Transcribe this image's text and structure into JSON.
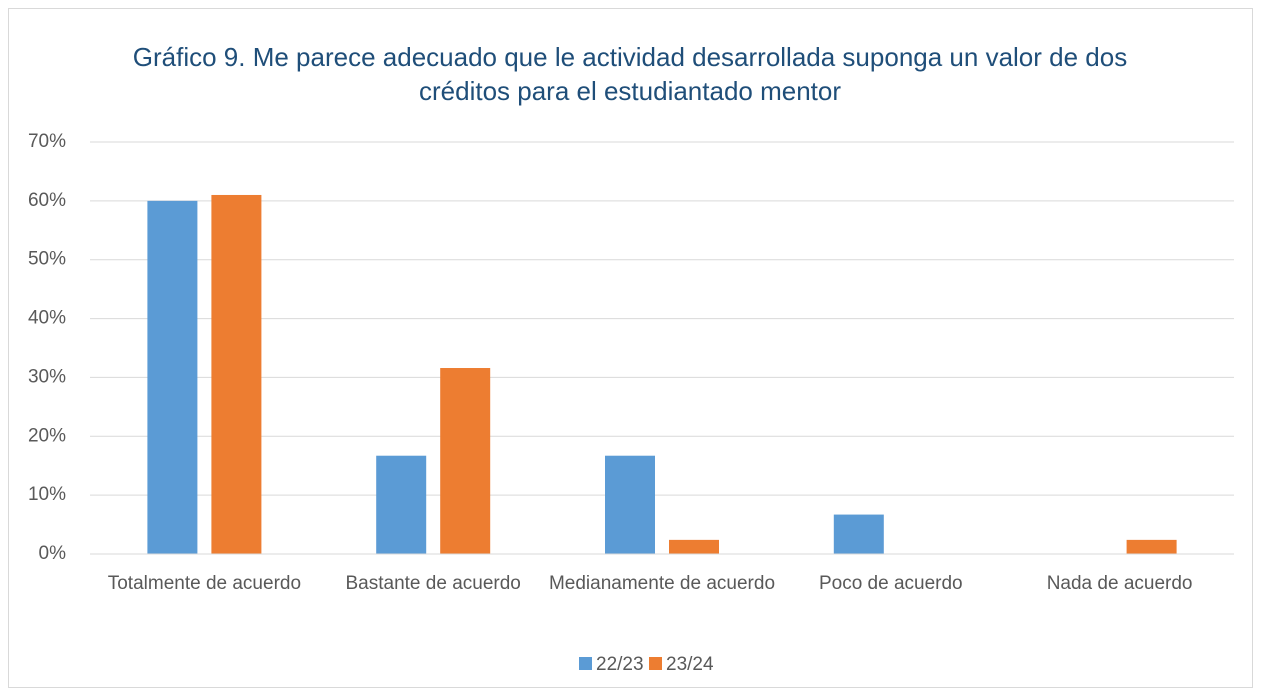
{
  "chart_data": {
    "type": "bar",
    "title": "Gráfico 9. Me parece adecuado que le actividad desarrollada suponga un valor de dos créditos para el estudiantado mentor",
    "categories": [
      "Totalmente de acuerdo",
      "Bastante de acuerdo",
      "Medianamente de acuerdo",
      "Poco de acuerdo",
      "Nada de acuerdo"
    ],
    "series": [
      {
        "name": "22/23",
        "color": "#5b9bd5",
        "values": [
          60,
          16.7,
          16.7,
          6.7,
          0
        ]
      },
      {
        "name": "23/24",
        "color": "#ed7d31",
        "values": [
          61,
          31.6,
          2.4,
          0,
          2.4
        ]
      }
    ],
    "ylim": [
      0,
      70
    ],
    "yticks": [
      {
        "value": 0,
        "label": "0%"
      },
      {
        "value": 10,
        "label": "10%"
      },
      {
        "value": 20,
        "label": "20%"
      },
      {
        "value": 30,
        "label": "30%"
      },
      {
        "value": 40,
        "label": "40%"
      },
      {
        "value": 50,
        "label": "50%"
      },
      {
        "value": 60,
        "label": "60%"
      },
      {
        "value": 70,
        "label": "70%"
      }
    ],
    "grid": true,
    "legend": "bottom"
  }
}
